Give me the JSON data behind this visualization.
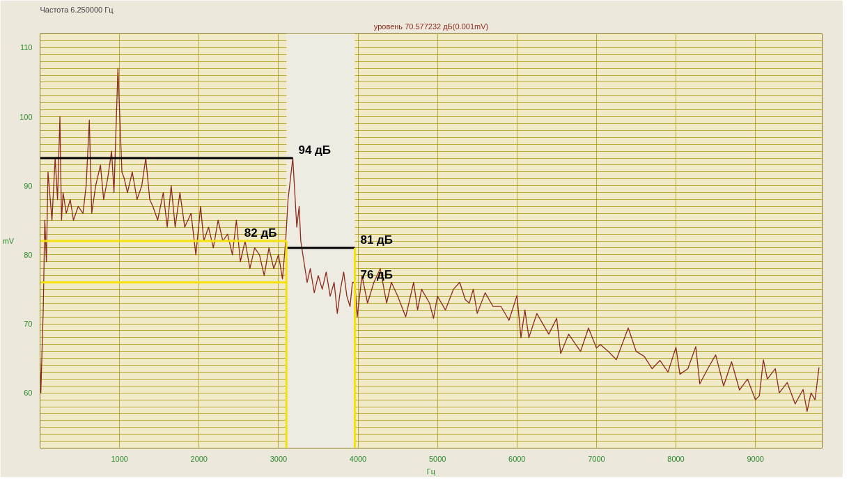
{
  "chart_data": {
    "type": "line",
    "title": "Частота 6.250000 Гц",
    "subtitle": "уровень 70.577232 дБ(0.001mV)",
    "xlabel": "Гц",
    "ylabel": "mV",
    "xlim": [
      0,
      9840
    ],
    "ylim": [
      52,
      112
    ],
    "xticks": [
      1000,
      2000,
      3000,
      4000,
      5000,
      6000,
      7000,
      8000,
      9000
    ],
    "yticks": [
      {
        "value": 53,
        "label": null
      },
      {
        "value": 54,
        "label": null
      },
      {
        "value": 55,
        "label": null
      },
      {
        "value": 56,
        "label": null
      },
      {
        "value": 57,
        "label": null
      },
      {
        "value": 58,
        "label": null
      },
      {
        "value": 59,
        "label": null
      },
      60,
      {
        "value": 61,
        "label": null
      },
      {
        "value": 62,
        "label": null
      },
      {
        "value": 63,
        "label": null
      },
      {
        "value": 64,
        "label": null
      },
      {
        "value": 65,
        "label": null
      },
      {
        "value": 66,
        "label": null
      },
      {
        "value": 67,
        "label": null
      },
      {
        "value": 68,
        "label": null
      },
      {
        "value": 69,
        "label": null
      },
      70,
      {
        "value": 71,
        "label": null
      },
      {
        "value": 72,
        "label": null
      },
      {
        "value": 73,
        "label": null
      },
      {
        "value": 74,
        "label": null
      },
      {
        "value": 75,
        "label": null
      },
      {
        "value": 76,
        "label": null
      },
      {
        "value": 77,
        "label": null
      },
      {
        "value": 78,
        "label": null
      },
      {
        "value": 79,
        "label": null
      },
      80,
      {
        "value": 81,
        "label": null
      },
      {
        "value": 82,
        "label": null
      },
      {
        "value": 83,
        "label": null
      },
      {
        "value": 84,
        "label": null
      },
      {
        "value": 85,
        "label": null
      },
      {
        "value": 86,
        "label": null
      },
      {
        "value": 87,
        "label": null
      },
      {
        "value": 88,
        "label": null
      },
      {
        "value": 89,
        "label": null
      },
      90,
      {
        "value": 91,
        "label": null
      },
      {
        "value": 92,
        "label": null
      },
      {
        "value": 93,
        "label": null
      },
      {
        "value": 94,
        "label": null
      },
      {
        "value": 95,
        "label": null
      },
      {
        "value": 96,
        "label": null
      },
      {
        "value": 97,
        "label": null
      },
      {
        "value": 98,
        "label": null
      },
      {
        "value": 99,
        "label": null
      },
      100,
      {
        "value": 101,
        "label": null
      },
      {
        "value": 102,
        "label": null
      },
      {
        "value": 103,
        "label": null
      },
      {
        "value": 104,
        "label": null
      },
      {
        "value": 105,
        "label": null
      },
      {
        "value": 106,
        "label": null
      },
      {
        "value": 107,
        "label": null
      },
      {
        "value": 108,
        "label": null
      },
      {
        "value": 109,
        "label": null
      },
      110,
      {
        "value": 111,
        "label": null
      }
    ],
    "grid": true,
    "line_style": "solid",
    "marker": "none",
    "bands": [
      {
        "axis": "x",
        "from": 3100,
        "to": 3960,
        "color": "#eeece2"
      }
    ],
    "series": [
      {
        "color": "#8b2a1a",
        "x": [
          0,
          10,
          40,
          60,
          80,
          100,
          150,
          190,
          220,
          250,
          270,
          290,
          330,
          380,
          420,
          480,
          540,
          580,
          620,
          650,
          700,
          760,
          800,
          850,
          900,
          930,
          980,
          1030,
          1060,
          1100,
          1160,
          1220,
          1280,
          1330,
          1380,
          1420,
          1480,
          1550,
          1600,
          1650,
          1700,
          1760,
          1820,
          1900,
          1960,
          2020,
          2060,
          2120,
          2180,
          2240,
          2300,
          2360,
          2420,
          2470,
          2520,
          2580,
          2640,
          2700,
          2760,
          2820,
          2880,
          2940,
          3000,
          3050,
          3090,
          3120,
          3180,
          3230,
          3260,
          3280,
          3320,
          3360,
          3400,
          3450,
          3500,
          3550,
          3600,
          3650,
          3700,
          3740,
          3780,
          3820,
          3860,
          3900,
          3930,
          3960,
          3990,
          4050,
          4120,
          4200,
          4280,
          4360,
          4420,
          4500,
          4600,
          4700,
          4750,
          4800,
          4900,
          4950,
          5000,
          5100,
          5200,
          5280,
          5350,
          5400,
          5450,
          5500,
          5600,
          5700,
          5800,
          5900,
          6000,
          6050,
          6100,
          6150,
          6250,
          6400,
          6500,
          6550,
          6650,
          6800,
          6900,
          7000,
          7050,
          7150,
          7250,
          7400,
          7500,
          7600,
          7700,
          7800,
          7900,
          8000,
          8050,
          8150,
          8250,
          8300,
          8400,
          8500,
          8600,
          8700,
          8800,
          8900,
          9000,
          9050,
          9100,
          9150,
          9250,
          9300,
          9400,
          9500,
          9600,
          9650,
          9700,
          9750,
          9800
        ],
        "values": [
          65,
          60,
          72,
          85,
          79,
          92,
          85,
          94,
          88,
          100,
          85,
          89,
          86,
          88,
          85,
          87,
          86,
          90,
          99.5,
          86,
          90,
          93,
          88,
          91,
          95,
          89,
          107,
          92,
          91,
          89,
          92,
          88,
          90,
          94,
          88,
          87,
          85,
          89,
          84,
          90,
          84,
          89,
          84,
          86,
          80,
          87,
          82,
          84,
          81,
          85,
          82,
          83,
          80,
          85,
          79,
          82,
          78,
          81,
          80,
          77,
          81,
          78,
          80,
          76.5,
          82,
          88,
          94,
          84,
          87,
          82,
          79,
          76,
          78,
          74.5,
          77,
          75,
          77.5,
          74,
          76,
          71.5,
          75,
          77.5,
          74,
          72.5,
          76,
          76,
          71,
          77,
          73,
          76,
          78,
          73,
          76,
          74,
          71,
          76,
          72,
          75,
          73,
          70.8,
          74,
          72,
          75,
          76,
          73.5,
          73,
          75,
          71.5,
          74.5,
          72.5,
          72.5,
          70.5,
          74.1,
          68,
          72,
          68,
          71.5,
          68.5,
          70.8,
          65.7,
          68.5,
          66,
          69.4,
          66.5,
          67,
          66,
          64.8,
          69.4,
          66,
          65.3,
          63.5,
          64.7,
          63,
          66.6,
          62.7,
          63.5,
          66.7,
          61.3,
          63.5,
          65.5,
          61,
          64.5,
          60.4,
          62,
          59,
          59.6,
          64.8,
          62,
          63.5,
          60,
          61.5,
          58.4,
          60.5,
          57.3,
          60,
          59,
          63.7
        ]
      },
      {
        "type": "line",
        "color": "#000000",
        "x": [
          0,
          3180
        ],
        "values": [
          94,
          94
        ]
      },
      {
        "type": "line",
        "color": "#f5e20a",
        "x": [
          0,
          3100
        ],
        "values": [
          82,
          82
        ]
      },
      {
        "type": "line",
        "color": "#f5e20a",
        "x": [
          0,
          3100
        ],
        "values": [
          76,
          76
        ]
      },
      {
        "type": "line",
        "color": "#000000",
        "x": [
          3100,
          3960
        ],
        "values": [
          81,
          81
        ]
      },
      {
        "type": "line",
        "color": "#f5e20a",
        "x": [
          3100,
          3100
        ],
        "values": [
          52,
          82
        ]
      },
      {
        "type": "line",
        "color": "#f5e20a",
        "x": [
          3960,
          3960
        ],
        "values": [
          52,
          81
        ]
      }
    ],
    "annotations": [
      {
        "text": "94 дБ",
        "x": 3180,
        "y": 94
      },
      {
        "text": "82 дБ",
        "x": 2500,
        "y": 82
      },
      {
        "text": "81 дБ",
        "x": 3960,
        "y": 81
      },
      {
        "text": "76 дБ",
        "x": 3960,
        "y": 76
      }
    ]
  }
}
